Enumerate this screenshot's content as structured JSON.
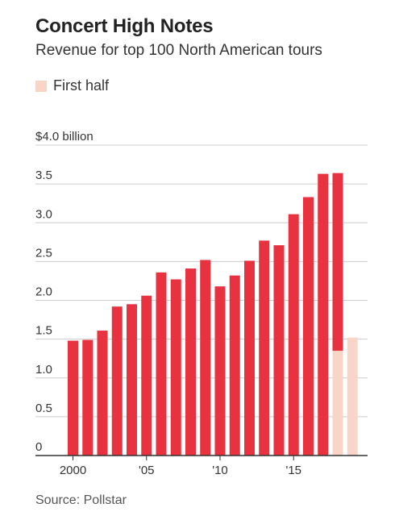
{
  "title": "Concert High Notes",
  "subtitle": "Revenue for top 100 North American tours",
  "legend": {
    "label": "First half",
    "color": "#f9d5c8"
  },
  "source": "Source: Pollstar",
  "colors": {
    "full_year": "#e8323f",
    "first_half": "#f9d5c8",
    "grid": "#cccccc",
    "axis": "#333333"
  },
  "chart_data": {
    "type": "bar",
    "title": "Concert High Notes",
    "subtitle": "Revenue for top 100 North American tours",
    "unit": "billion",
    "ylim": [
      0,
      4.0
    ],
    "y_ticks": [
      {
        "value": 0,
        "label": "0"
      },
      {
        "value": 0.5,
        "label": "0.5"
      },
      {
        "value": 1.0,
        "label": "1.0"
      },
      {
        "value": 1.5,
        "label": "1.5"
      },
      {
        "value": 2.0,
        "label": "2.0"
      },
      {
        "value": 2.5,
        "label": "2.5"
      },
      {
        "value": 3.0,
        "label": "3.0"
      },
      {
        "value": 3.5,
        "label": "3.5"
      },
      {
        "value": 4.0,
        "label": "$4.0 billion"
      }
    ],
    "x_ticks": [
      {
        "year": 2000,
        "label": "2000"
      },
      {
        "year": 2005,
        "label": "'05"
      },
      {
        "year": 2010,
        "label": "'10"
      },
      {
        "year": 2015,
        "label": "'15"
      }
    ],
    "categories": [
      2000,
      2001,
      2002,
      2003,
      2004,
      2005,
      2006,
      2007,
      2008,
      2009,
      2010,
      2011,
      2012,
      2013,
      2014,
      2015,
      2016,
      2017,
      2018,
      2019
    ],
    "series": [
      {
        "name": "",
        "values": [
          1.48,
          1.49,
          1.61,
          1.92,
          1.95,
          2.06,
          2.36,
          2.27,
          2.41,
          2.52,
          2.18,
          2.32,
          2.51,
          2.77,
          2.71,
          3.11,
          3.33,
          3.63,
          3.64,
          null
        ]
      },
      {
        "name": "First half",
        "values": [
          null,
          null,
          null,
          null,
          null,
          null,
          null,
          null,
          null,
          null,
          null,
          null,
          null,
          null,
          null,
          null,
          null,
          null,
          1.35,
          1.52
        ]
      }
    ],
    "grid": true,
    "legend_position": "top-left"
  }
}
